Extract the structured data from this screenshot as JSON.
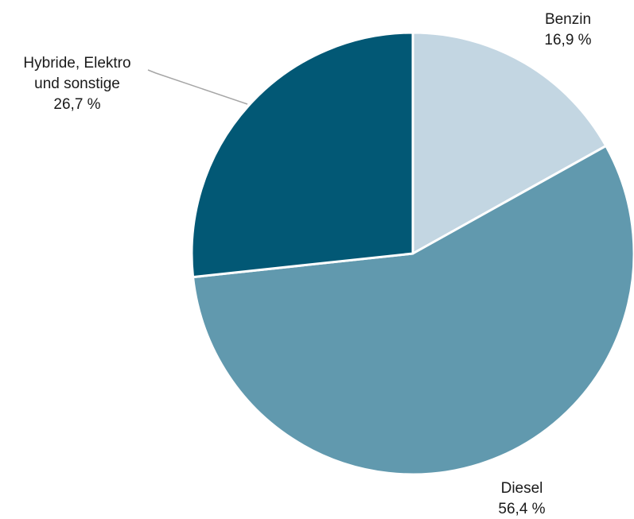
{
  "chart_data": {
    "type": "pie",
    "title": "",
    "slices": [
      {
        "label_lines": [
          "Benzin"
        ],
        "value_text": "16,9 %",
        "value": 16.9,
        "color": "#c3d6e2"
      },
      {
        "label_lines": [
          "Diesel"
        ],
        "value_text": "56,4 %",
        "value": 56.4,
        "color": "#6199ae"
      },
      {
        "label_lines": [
          "Hybride, Elektro",
          "und sonstige"
        ],
        "value_text": "26,7 %",
        "value": 26.7,
        "color": "#025875"
      }
    ],
    "start_angle_deg": 0,
    "direction": "clockwise",
    "leader_line_color": "#a6a6a6",
    "slice_border_color": "#ffffff"
  }
}
